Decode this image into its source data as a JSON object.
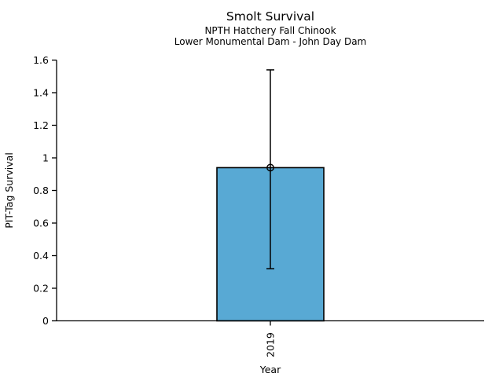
{
  "chart_data": {
    "type": "bar",
    "title": "Smolt Survival",
    "subtitle1": "NPTH Hatchery Fall Chinook",
    "subtitle2": "Lower Monumental Dam - John Day Dam",
    "xlabel": "Year",
    "ylabel": "PIT-Tag Survival",
    "categories": [
      "2019"
    ],
    "values": [
      0.94
    ],
    "error_low": [
      0.32
    ],
    "error_high": [
      1.54
    ],
    "ylim": [
      0,
      1.6
    ],
    "yticks": [
      0,
      0.2,
      0.4,
      0.6,
      0.8,
      1,
      1.2,
      1.4,
      1.6
    ],
    "ytick_labels": [
      "0",
      "0.2",
      "0.4",
      "0.6",
      "0.8",
      "1",
      "1.2",
      "1.4",
      "1.6"
    ],
    "bar_color": "#58A9D4",
    "bar_edge_color": "#000000",
    "error_color": "#000000",
    "marker": "open-circle",
    "legend": "none",
    "grid": false
  }
}
